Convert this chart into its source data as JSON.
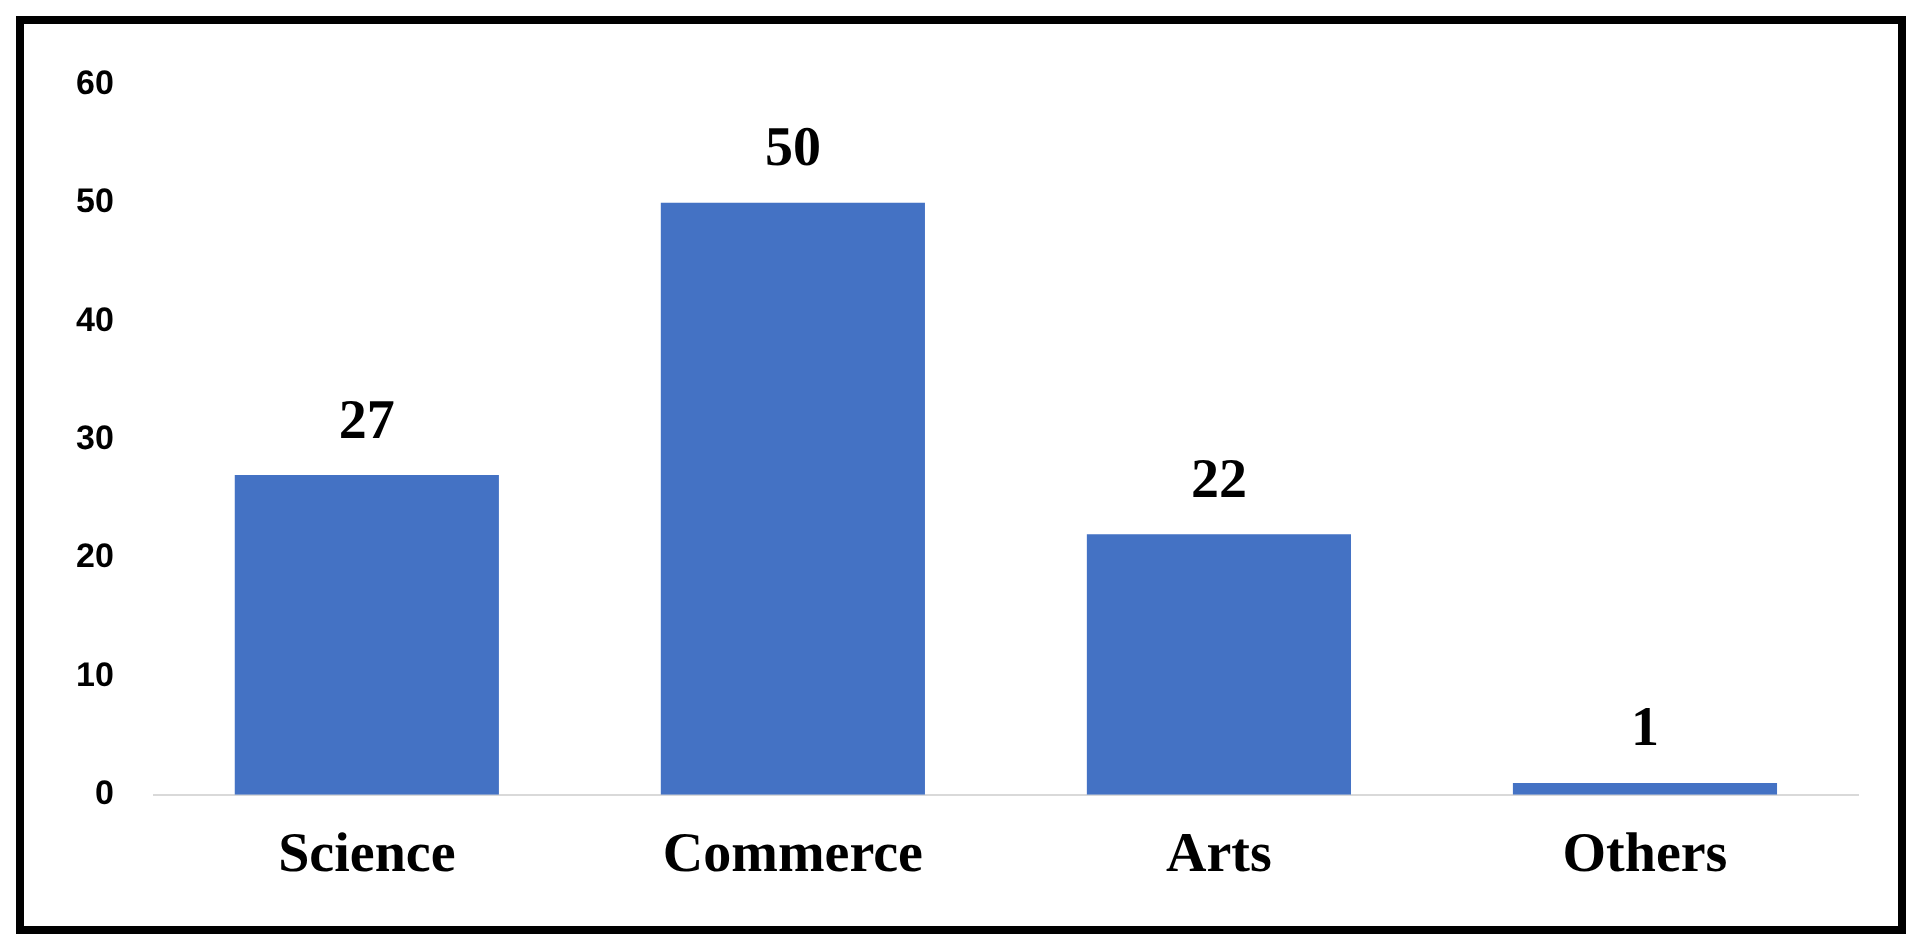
{
  "chart_data": {
    "type": "bar",
    "categories": [
      "Science",
      "Commerce",
      "Arts",
      "Others"
    ],
    "values": [
      27,
      50,
      22,
      1
    ],
    "color": "#4472c4",
    "ylim": [
      0,
      60
    ],
    "yticks": [
      0,
      10,
      20,
      30,
      40,
      50,
      60
    ],
    "grid": false,
    "legend": false,
    "data_labels": true
  }
}
